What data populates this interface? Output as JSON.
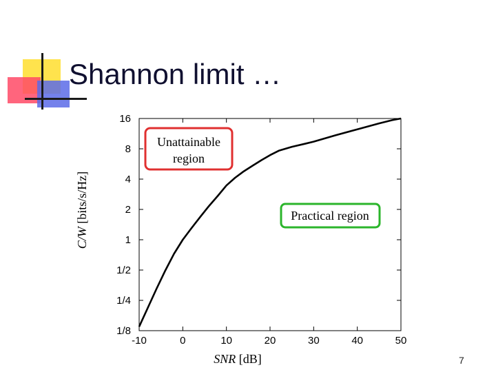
{
  "slide": {
    "title": "Shannon limit …",
    "page_number": "7"
  },
  "chart_data": {
    "type": "line",
    "xlabel_italic": "SNR",
    "xlabel_unit": " [dB]",
    "ylabel_italic": "C/W",
    "ylabel_unit": " [bits/s/Hz]",
    "xlim": [
      -10,
      50
    ],
    "ylim": [
      0.125,
      16
    ],
    "y_scale": "log2",
    "x_ticks": [
      -10,
      0,
      10,
      20,
      30,
      40,
      50
    ],
    "x_tick_labels": [
      "-10",
      "0",
      "10",
      "20",
      "30",
      "40",
      "50"
    ],
    "y_ticks": [
      0.125,
      0.25,
      0.5,
      1,
      2,
      4,
      8,
      16
    ],
    "y_tick_labels": [
      "1/8",
      "1/4",
      "1/2",
      "1",
      "2",
      "4",
      "8",
      "16"
    ],
    "grid": false,
    "series": [
      {
        "color": "#000000",
        "x": [
          -10,
          -8,
          -6,
          -4,
          -2,
          0,
          2,
          4,
          6,
          8,
          10,
          12,
          14,
          16,
          18,
          20,
          22,
          25,
          28,
          30,
          35,
          40,
          45,
          48,
          50
        ],
        "y": [
          0.137,
          0.212,
          0.327,
          0.495,
          0.727,
          1.0,
          1.306,
          1.687,
          2.16,
          2.72,
          3.46,
          4.13,
          4.79,
          5.44,
          6.16,
          6.92,
          7.65,
          8.38,
          8.98,
          9.42,
          10.9,
          12.5,
          14.3,
          15.4,
          16.0
        ]
      }
    ],
    "annotations": [
      {
        "text_lines": [
          "Unattainable",
          "region"
        ],
        "border_color": "#e03030"
      },
      {
        "text_lines": [
          "Practical region"
        ],
        "border_color": "#2bb52b"
      }
    ]
  }
}
